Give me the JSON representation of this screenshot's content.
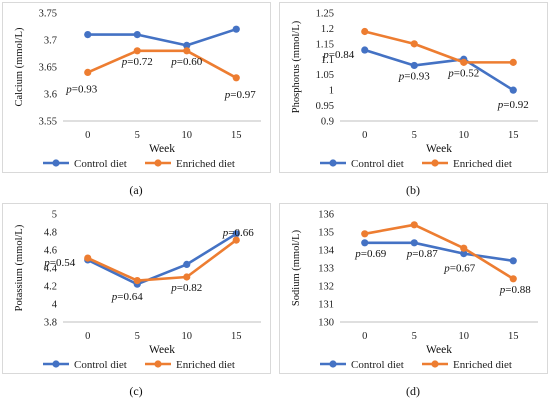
{
  "chart_data": [
    {
      "type": "line",
      "panel_label": "(a)",
      "xlabel": "Week",
      "ylabel": "Calcium (mmol/L)",
      "categories": [
        "0",
        "5",
        "10",
        "15"
      ],
      "yticks": [
        "3.55",
        "3.6",
        "3.65",
        "3.7",
        "3.75"
      ],
      "ylim": [
        3.55,
        3.75
      ],
      "series": [
        {
          "name": "Control diet",
          "color": "#4472C4",
          "values": [
            3.71,
            3.71,
            3.69,
            3.72
          ]
        },
        {
          "name": "Enriched diet",
          "color": "#ED7D31",
          "values": [
            3.64,
            3.68,
            3.68,
            3.63
          ]
        }
      ],
      "annotations": [
        "p=0.93",
        "p=0.72",
        "p=0.60",
        "p=0.97"
      ],
      "legend_position": "bottom"
    },
    {
      "type": "line",
      "panel_label": "(b)",
      "xlabel": "Week",
      "ylabel": "Phosphorus (mmol/L)",
      "categories": [
        "0",
        "5",
        "10",
        "15"
      ],
      "yticks": [
        "0.9",
        "0.95",
        "1",
        "1.05",
        "1.1",
        "1.15",
        "1.2",
        "1.25"
      ],
      "ylim": [
        0.9,
        1.25
      ],
      "series": [
        {
          "name": "Control diet",
          "color": "#4472C4",
          "values": [
            1.13,
            1.08,
            1.1,
            1.0
          ]
        },
        {
          "name": "Enriched diet",
          "color": "#ED7D31",
          "values": [
            1.19,
            1.15,
            1.09,
            1.09
          ]
        }
      ],
      "annotations": [
        "p=0.84",
        "p=0.93",
        "p=0.52",
        "p=0.92"
      ],
      "legend_position": "bottom"
    },
    {
      "type": "line",
      "panel_label": "(c)",
      "xlabel": "Week",
      "ylabel": "Potassium (mmol/L)",
      "categories": [
        "0",
        "5",
        "10",
        "15"
      ],
      "yticks": [
        "3.8",
        "4",
        "4.2",
        "4.4",
        "4.6",
        "4.8",
        "5"
      ],
      "ylim": [
        3.8,
        5.0
      ],
      "series": [
        {
          "name": "Control diet",
          "color": "#4472C4",
          "values": [
            4.49,
            4.22,
            4.44,
            4.78
          ]
        },
        {
          "name": "Enriched diet",
          "color": "#ED7D31",
          "values": [
            4.51,
            4.26,
            4.3,
            4.71
          ]
        }
      ],
      "annotations": [
        "p=0.54",
        "p=0.64",
        "p=0.82",
        "p=0.66"
      ],
      "legend_position": "bottom"
    },
    {
      "type": "line",
      "panel_label": "(d)",
      "xlabel": "Week",
      "ylabel": "Sodium (mmol/L)",
      "categories": [
        "0",
        "5",
        "10",
        "15"
      ],
      "yticks": [
        "130",
        "131",
        "132",
        "133",
        "134",
        "135",
        "136"
      ],
      "ylim": [
        130,
        136
      ],
      "series": [
        {
          "name": "Control diet",
          "color": "#4472C4",
          "values": [
            134.4,
            134.4,
            133.8,
            133.4
          ]
        },
        {
          "name": "Enriched diet",
          "color": "#ED7D31",
          "values": [
            134.9,
            135.4,
            134.1,
            132.4
          ]
        }
      ],
      "annotations": [
        "p=0.69",
        "p=0.87",
        "p=0.67",
        "p=0.88"
      ],
      "legend_position": "bottom"
    }
  ]
}
